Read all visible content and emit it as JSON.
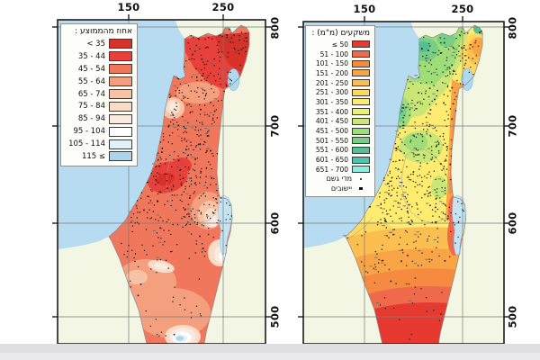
{
  "left_map": {
    "legend_title": "אחוז מהממוצע :",
    "legend": [
      {
        "label": "< 35",
        "color": "#d63229"
      },
      {
        "label": "35 - 44",
        "color": "#e8413b"
      },
      {
        "label": "45 - 54",
        "color": "#f0775c"
      },
      {
        "label": "55 - 64",
        "color": "#f4a07f"
      },
      {
        "label": "65 - 74",
        "color": "#f7c3a6"
      },
      {
        "label": "75 - 84",
        "color": "#f9dcc8"
      },
      {
        "label": "85 - 94",
        "color": "#faeadf"
      },
      {
        "label": "95 - 104",
        "color": "#ffffff"
      },
      {
        "label": "105 - 114",
        "color": "#e2f1f6"
      },
      {
        "label": "115 ≤",
        "color": "#a9d5ee"
      }
    ],
    "top_axis": [
      "150",
      "250"
    ],
    "side_axis": [
      "800",
      "700",
      "600",
      "500"
    ]
  },
  "right_map": {
    "legend_title": "משקעים (מ\"מ) :",
    "legend": [
      {
        "label": "≤ 50",
        "color": "#e63a30"
      },
      {
        "label": "51 - 100",
        "color": "#ef6a4b"
      },
      {
        "label": "101 - 150",
        "color": "#f58a41"
      },
      {
        "label": "151 - 200",
        "color": "#f8a447"
      },
      {
        "label": "201 - 250",
        "color": "#fbbf51"
      },
      {
        "label": "251 - 300",
        "color": "#fdd95f"
      },
      {
        "label": "301 - 350",
        "color": "#feec70"
      },
      {
        "label": "351 - 400",
        "color": "#eaf07a"
      },
      {
        "label": "401 - 450",
        "color": "#c8e776"
      },
      {
        "label": "451 - 500",
        "color": "#9edd78"
      },
      {
        "label": "501 - 550",
        "color": "#77cf87"
      },
      {
        "label": "551 - 600",
        "color": "#54bf92"
      },
      {
        "label": "601 - 650",
        "color": "#4cc4ae"
      },
      {
        "label": "651 - 700",
        "color": "#93ebdb"
      }
    ],
    "symbols": [
      {
        "label": "מדי גשם",
        "symbol": "dot"
      },
      {
        "label": "יישובים",
        "symbol": "square"
      }
    ],
    "top_axis": [
      "150",
      "250"
    ],
    "side_axis": [
      "800",
      "700",
      "600",
      "500"
    ]
  },
  "colors": {
    "sea": "#b7dcf1",
    "land": "#f2f6e3",
    "lake": "#aed9f0",
    "dead_sea": "#c5e4f3",
    "frame": "#1c1c1c",
    "grid": "#7a7a7a",
    "border": "#8a8a8a",
    "dot": "#161616",
    "scrollbar_top": "#dfdfe1",
    "scrollbar_bottom": "#eaeaec"
  }
}
